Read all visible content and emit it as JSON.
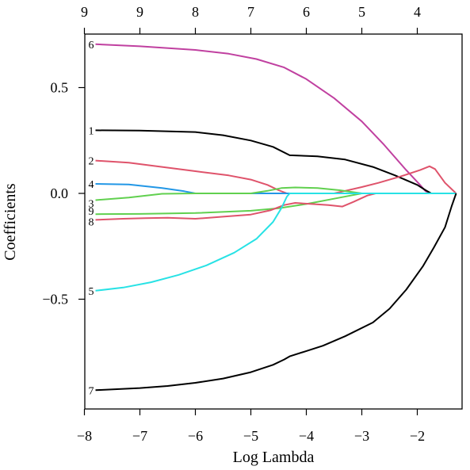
{
  "chart_data": {
    "type": "line",
    "title": "",
    "xlabel": "Log Lambda",
    "ylabel": "Coefficients",
    "xlim": [
      -8.0,
      -1.0
    ],
    "ylim": [
      -1.0,
      0.75
    ],
    "x_ticks": [
      -8,
      -7,
      -6,
      -5,
      -4,
      -3,
      -2
    ],
    "x_tick_labels": [
      "−8",
      "−7",
      "−6",
      "−5",
      "−4",
      "−3",
      "−2"
    ],
    "y_ticks": [
      -0.5,
      0.0,
      0.5
    ],
    "y_tick_labels": [
      "−0.5",
      "0.0",
      "0.5"
    ],
    "top_axis": {
      "x": [
        -8.0,
        -7.0,
        -6.0,
        -5.0,
        -4.0,
        -3.0,
        -2.0
      ],
      "labels": [
        "9",
        "9",
        "8",
        "7",
        "6",
        "5",
        "4"
      ]
    },
    "grid": false,
    "series": [
      {
        "name": "6",
        "color": "#c040a0",
        "points": [
          [
            -7.8,
            0.705
          ],
          [
            -7.0,
            0.695
          ],
          [
            -6.0,
            0.678
          ],
          [
            -5.4,
            0.66
          ],
          [
            -4.9,
            0.635
          ],
          [
            -4.4,
            0.595
          ],
          [
            -4.0,
            0.54
          ],
          [
            -3.5,
            0.45
          ],
          [
            -3.0,
            0.34
          ],
          [
            -2.6,
            0.23
          ],
          [
            -2.2,
            0.11
          ],
          [
            -1.95,
            0.04
          ],
          [
            -1.85,
            0.01
          ],
          [
            -1.75,
            0.0
          ],
          [
            -1.3,
            0.0
          ]
        ]
      },
      {
        "name": "1",
        "color": "#000000",
        "points": [
          [
            -7.8,
            0.298
          ],
          [
            -7.0,
            0.297
          ],
          [
            -6.0,
            0.29
          ],
          [
            -5.5,
            0.275
          ],
          [
            -5.0,
            0.25
          ],
          [
            -4.6,
            0.22
          ],
          [
            -4.3,
            0.18
          ],
          [
            -3.8,
            0.175
          ],
          [
            -3.3,
            0.16
          ],
          [
            -2.8,
            0.125
          ],
          [
            -2.4,
            0.085
          ],
          [
            -2.0,
            0.04
          ],
          [
            -1.85,
            0.015
          ],
          [
            -1.75,
            0.0
          ],
          [
            -1.3,
            0.0
          ]
        ]
      },
      {
        "name": "2",
        "color": "#df536b",
        "points": [
          [
            -7.8,
            0.155
          ],
          [
            -7.2,
            0.145
          ],
          [
            -6.6,
            0.125
          ],
          [
            -6.0,
            0.105
          ],
          [
            -5.4,
            0.085
          ],
          [
            -5.0,
            0.065
          ],
          [
            -4.7,
            0.04
          ],
          [
            -4.5,
            0.015
          ],
          [
            -4.35,
            0.0
          ],
          [
            -4.0,
            0.0
          ],
          [
            -3.5,
            0.0
          ],
          [
            -3.3,
            0.012
          ],
          [
            -3.0,
            0.03
          ],
          [
            -2.7,
            0.05
          ],
          [
            -2.3,
            0.08
          ],
          [
            -1.95,
            0.11
          ],
          [
            -1.78,
            0.128
          ],
          [
            -1.68,
            0.115
          ],
          [
            -1.5,
            0.05
          ],
          [
            -1.3,
            0.0
          ]
        ]
      },
      {
        "name": "4",
        "color": "#2297e6",
        "points": [
          [
            -7.8,
            0.045
          ],
          [
            -7.2,
            0.042
          ],
          [
            -6.6,
            0.025
          ],
          [
            -6.2,
            0.01
          ],
          [
            -6.0,
            0.0
          ],
          [
            -5.0,
            0.0
          ],
          [
            -4.0,
            0.0
          ],
          [
            -3.0,
            0.0
          ],
          [
            -2.0,
            0.0
          ],
          [
            -1.3,
            0.0
          ]
        ]
      },
      {
        "name": "3",
        "color": "#61d04f",
        "points": [
          [
            -7.8,
            -0.032
          ],
          [
            -7.2,
            -0.02
          ],
          [
            -6.6,
            -0.002
          ],
          [
            -6.0,
            0.0
          ],
          [
            -5.0,
            0.0
          ],
          [
            -4.7,
            0.012
          ],
          [
            -4.45,
            0.025
          ],
          [
            -4.2,
            0.028
          ],
          [
            -3.8,
            0.025
          ],
          [
            -3.4,
            0.015
          ],
          [
            -3.0,
            0.0
          ],
          [
            -2.0,
            0.0
          ],
          [
            -1.3,
            0.0
          ]
        ]
      },
      {
        "name": "9",
        "color": "#61d04f",
        "points": [
          [
            -7.8,
            -0.098
          ],
          [
            -7.0,
            -0.097
          ],
          [
            -6.0,
            -0.093
          ],
          [
            -5.0,
            -0.082
          ],
          [
            -4.5,
            -0.07
          ],
          [
            -4.0,
            -0.05
          ],
          [
            -3.5,
            -0.025
          ],
          [
            -3.2,
            -0.01
          ],
          [
            -3.0,
            0.0
          ],
          [
            -2.0,
            0.0
          ],
          [
            -1.3,
            0.0
          ]
        ]
      },
      {
        "name": "8",
        "color": "#df536b",
        "points": [
          [
            -7.8,
            -0.125
          ],
          [
            -7.3,
            -0.12
          ],
          [
            -6.9,
            -0.117
          ],
          [
            -6.5,
            -0.115
          ],
          [
            -6.0,
            -0.12
          ],
          [
            -5.5,
            -0.11
          ],
          [
            -5.0,
            -0.1
          ],
          [
            -4.65,
            -0.08
          ],
          [
            -4.4,
            -0.055
          ],
          [
            -4.2,
            -0.045
          ],
          [
            -3.9,
            -0.05
          ],
          [
            -3.6,
            -0.055
          ],
          [
            -3.35,
            -0.062
          ],
          [
            -3.15,
            -0.04
          ],
          [
            -2.9,
            -0.01
          ],
          [
            -2.75,
            0.0
          ],
          [
            -2.0,
            0.0
          ],
          [
            -1.3,
            0.0
          ]
        ]
      },
      {
        "name": "5",
        "color": "#28e2e5",
        "points": [
          [
            -7.8,
            -0.46
          ],
          [
            -7.3,
            -0.445
          ],
          [
            -6.8,
            -0.42
          ],
          [
            -6.3,
            -0.385
          ],
          [
            -5.8,
            -0.34
          ],
          [
            -5.3,
            -0.28
          ],
          [
            -4.9,
            -0.215
          ],
          [
            -4.6,
            -0.135
          ],
          [
            -4.45,
            -0.07
          ],
          [
            -4.35,
            -0.015
          ],
          [
            -4.3,
            0.0
          ],
          [
            -3.0,
            0.0
          ],
          [
            -2.0,
            0.0
          ],
          [
            -1.3,
            0.0
          ]
        ]
      },
      {
        "name": "7",
        "color": "#000000",
        "points": [
          [
            -7.8,
            -0.93
          ],
          [
            -7.0,
            -0.92
          ],
          [
            -6.5,
            -0.91
          ],
          [
            -6.0,
            -0.895
          ],
          [
            -5.5,
            -0.875
          ],
          [
            -5.0,
            -0.845
          ],
          [
            -4.6,
            -0.81
          ],
          [
            -4.4,
            -0.785
          ],
          [
            -4.3,
            -0.77
          ],
          [
            -4.0,
            -0.745
          ],
          [
            -3.7,
            -0.72
          ],
          [
            -3.3,
            -0.675
          ],
          [
            -2.8,
            -0.61
          ],
          [
            -2.5,
            -0.545
          ],
          [
            -2.2,
            -0.455
          ],
          [
            -1.9,
            -0.345
          ],
          [
            -1.7,
            -0.255
          ],
          [
            -1.5,
            -0.16
          ],
          [
            -1.38,
            -0.06
          ],
          [
            -1.3,
            0.0
          ]
        ]
      }
    ]
  }
}
